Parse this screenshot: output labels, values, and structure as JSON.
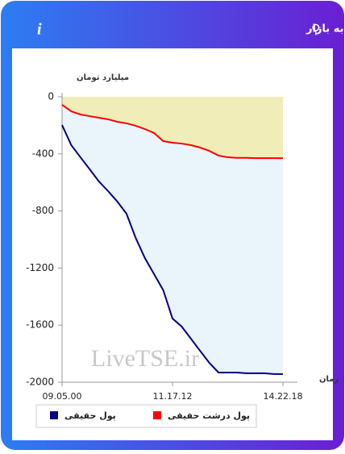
{
  "chart_data": {
    "type": "line",
    "title": "برآیند ورود و خروج پول حقیقی و پول درشت حقیقی به بازار",
    "y_label": "میلیارد تومان",
    "x_label": "زمان",
    "watermark": "LiveTSE.ir",
    "categories": [
      "09.05.00",
      null,
      null,
      null,
      null,
      null,
      null,
      null,
      null,
      null,
      null,
      null,
      "11.17.12",
      null,
      null,
      null,
      null,
      null,
      null,
      null,
      null,
      null,
      null,
      null,
      "14.22.18"
    ],
    "series": [
      {
        "name": "پول حقیقی",
        "color": "#000080",
        "values": [
          -198,
          -339,
          -424,
          -508,
          -593,
          -661,
          -734,
          -819,
          -989,
          -1130,
          -1243,
          -1356,
          -1554,
          -1610,
          -1695,
          -1780,
          -1864,
          -1932,
          -1932,
          -1932,
          -1937,
          -1937,
          -1937,
          -1943,
          -1943
        ]
      },
      {
        "name": "پول درشت حقیقی",
        "color": "#ff0000",
        "values": [
          -56,
          -102,
          -124,
          -136,
          -147,
          -158,
          -175,
          -186,
          -203,
          -226,
          -254,
          -311,
          -322,
          -328,
          -339,
          -356,
          -379,
          -412,
          -424,
          -428,
          -428,
          -430,
          -430,
          -430,
          -430
        ]
      }
    ],
    "ylim": [
      -2000,
      0
    ],
    "yticks": [
      0,
      -400,
      -800,
      -1200,
      -1600,
      -2000
    ],
    "grid": false
  }
}
